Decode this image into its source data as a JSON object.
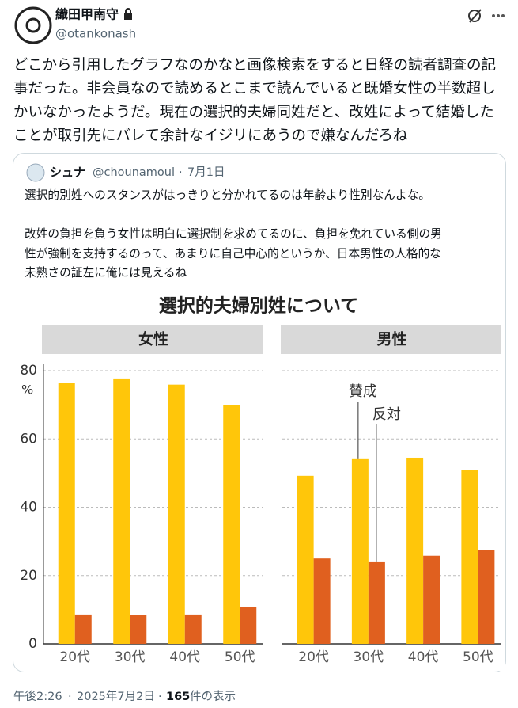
{
  "tweet": {
    "name": "織田甲南守",
    "handle": "@otankonash",
    "text": [
      "どこから引用したグラフなのかなと画像検索をすると日経の読者調査の記",
      "事だった。非会員なので読めるとこまで読んでいると既婚女性の半数超し",
      "かいなかったようだ。現在の選択的夫婦同姓だと、改姓によって結婚した",
      "ことが取引先にバレて余計なイジリにあうので嫌なんだろね"
    ]
  },
  "quote": {
    "name": "シュナ",
    "handle": "@chounamoul",
    "separator": "·",
    "date": "7月1日",
    "text": [
      "選択的別姓へのスタンスがはっきりと分かれてるのは年齢より性別なんよな。",
      "改姓の負担を負う女性は明白に選択制を求めてるのに、負担を免れている側の男",
      "性が強制を支持するのって、あまりに自己中心的というか、日本男性の人格的な",
      "未熟さの証左に俺には見えるね"
    ]
  },
  "figure_title": "選択的夫婦別姓について",
  "chart_data": [
    {
      "type": "bar",
      "title": "女性",
      "y_unit": "%",
      "categories": [
        "20代",
        "30代",
        "40代",
        "50代"
      ],
      "series": [
        {
          "color": "#ffc60a",
          "values": [
            76.5,
            77.7,
            75.9,
            70
          ]
        },
        {
          "color": "#e0601f",
          "values": [
            8.6,
            8.4,
            8.6,
            10.9
          ]
        }
      ],
      "ylim": [
        0,
        80
      ],
      "yticks": [
        0,
        20,
        40,
        60,
        80
      ],
      "grid": true
    },
    {
      "type": "bar",
      "title": "男性",
      "categories": [
        "20代",
        "30代",
        "40代",
        "50代"
      ],
      "series": [
        {
          "name": "賛成",
          "color": "#ffc60a",
          "values": [
            49.2,
            54.3,
            54.5,
            50.8
          ]
        },
        {
          "name": "反対",
          "color": "#e0601f",
          "values": [
            25,
            23.9,
            25.8,
            27.4
          ]
        }
      ],
      "ylim": [
        0,
        80
      ],
      "yticks": [
        0,
        20,
        40,
        60,
        80
      ],
      "grid": true
    }
  ],
  "footer": {
    "time": "午後2:26",
    "separator": "·",
    "date": "2025年7月2日",
    "views": "165",
    "views_label": "件の表示"
  }
}
